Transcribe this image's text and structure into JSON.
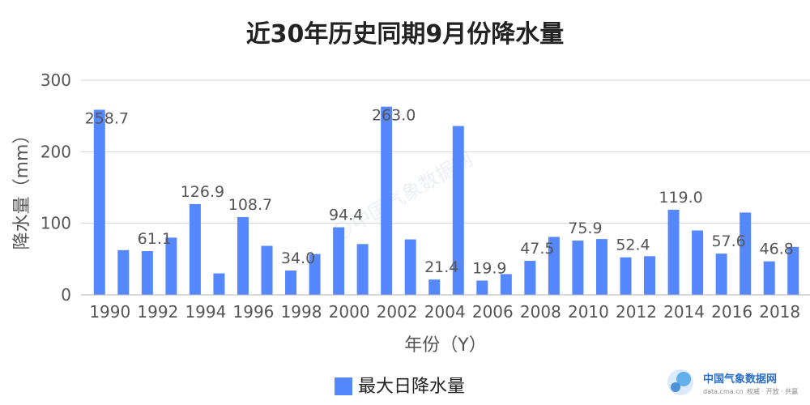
{
  "chart_data": {
    "type": "bar",
    "title": "近30年历史同期9月份降水量",
    "xlabel": "年份（Y）",
    "ylabel": "降水量（mm）",
    "ylim": [
      0,
      300
    ],
    "yticks": [
      0,
      100,
      200,
      300
    ],
    "grid": true,
    "legend_position": "bottom",
    "bar_color": "#5587FF",
    "categories": [
      "1990",
      "1991",
      "1992",
      "1993",
      "1994",
      "1995",
      "1996",
      "1997",
      "1998",
      "1999",
      "2000",
      "2001",
      "2002",
      "2003",
      "2004",
      "2005",
      "2006",
      "2007",
      "2008",
      "2009",
      "2010",
      "2011",
      "2012",
      "2013",
      "2014",
      "2015",
      "2016",
      "2017",
      "2018",
      "2019"
    ],
    "x_tick_labels": [
      "1990",
      "1992",
      "1994",
      "1996",
      "1998",
      "2000",
      "2002",
      "2004",
      "2006",
      "2008",
      "2010",
      "2012",
      "2014",
      "2016",
      "2018"
    ],
    "series": [
      {
        "name": "最大日降水量",
        "values": [
          258.7,
          62.5,
          61.1,
          80.0,
          126.9,
          30.0,
          108.7,
          68.5,
          34.0,
          57.0,
          94.4,
          71.0,
          263.0,
          77.5,
          21.4,
          236.0,
          19.9,
          29.0,
          47.5,
          81.0,
          75.9,
          78.0,
          52.4,
          54.0,
          119.0,
          90.0,
          57.6,
          115.0,
          46.8,
          67.0
        ],
        "labels": [
          "258.7",
          null,
          "61.1",
          null,
          "126.9",
          null,
          "108.7",
          null,
          "34.0",
          null,
          "94.4",
          null,
          "263.0",
          null,
          "21.4",
          null,
          "19.9",
          null,
          "47.5",
          null,
          "75.9",
          null,
          "52.4",
          null,
          "119.0",
          null,
          "57.6",
          null,
          "46.8",
          null
        ]
      }
    ]
  },
  "watermark": {
    "center_text": "中国气象数据网",
    "brand_name": "中国气象数据网",
    "brand_url": "data.cma.cn",
    "brand_tagline": "权威 · 开放 · 共赢"
  }
}
